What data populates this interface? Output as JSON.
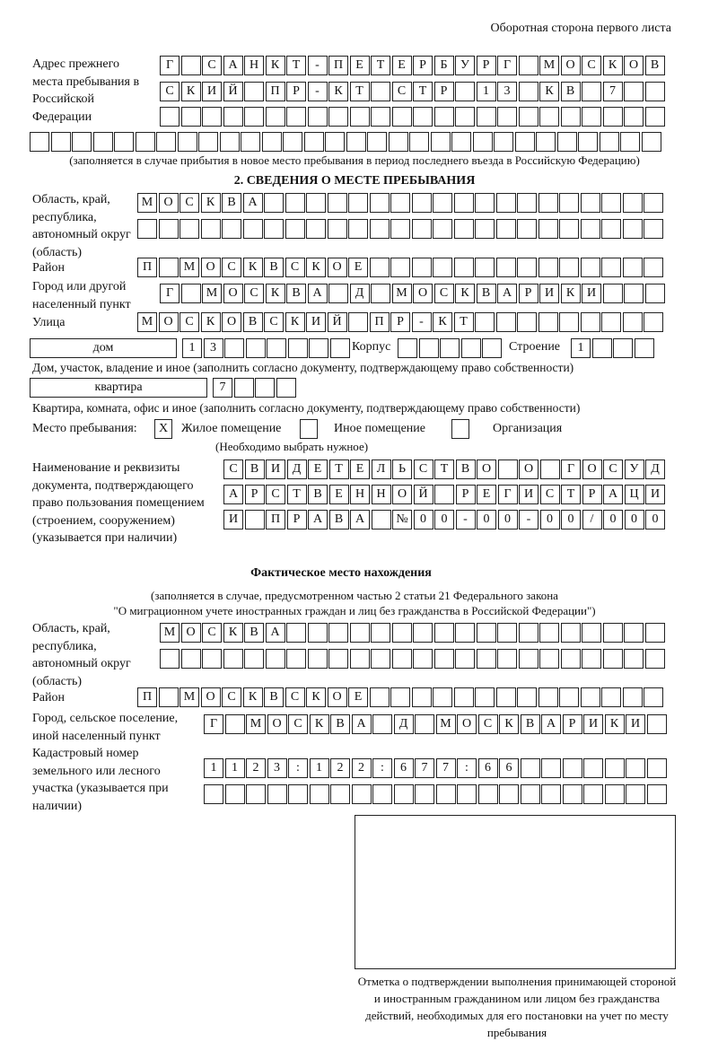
{
  "header": "Оборотная сторона первого листа",
  "prev_address": {
    "label": "Адрес прежнего места пребывания в Российской Федерации",
    "rows": [
      "Г САНКТ-ПЕТЕРБУРГ МОСКОВ",
      "СКИЙ ПР-КТ СТР 13 КВ 7  ",
      "                        ",
      "                              "
    ],
    "note": "(заполняется в случае прибытия в новое место пребывания в период последнего въезда в Российскую Федерацию)"
  },
  "section2": {
    "title": "2. СВЕДЕНИЯ О МЕСТЕ ПРЕБЫВАНИЯ",
    "region_label": "Область, край, республика, автономный округ (область)",
    "region_rows": [
      "МОСКВА                   ",
      "                         "
    ],
    "district_label": "Район",
    "district_row": "П МОСКВСКОЕ              ",
    "city_label": "Город или другой населенный пункт",
    "city_row": "Г МОСКВА Д МОСКВАРИКИ   ",
    "street_label": "Улица",
    "street_row": "МОСКОВСКИЙ ПР-КТ         ",
    "house_type": "дом",
    "house_row": "13      ",
    "korpus_label": "Корпус",
    "korpus_row": "     ",
    "stroenie_label": "Строение",
    "stroenie_row": "1   ",
    "house_note": "Дом, участок, владение и иное (заполнить согласно документу, подтверждающему право собственности)",
    "flat_type": "квартира",
    "flat_row": "7   ",
    "flat_note": "Квартира, комната, офис и иное (заполнить согласно документу, подтверждающему право собственности)",
    "stay_label": "Место пребывания:",
    "stay_options": [
      {
        "label": "Жилое помещение",
        "mark": "Х"
      },
      {
        "label": "Иное помещение",
        "mark": ""
      },
      {
        "label": "Организация",
        "mark": ""
      }
    ],
    "stay_note": "(Необходимо выбрать нужное)",
    "doc_label": "Наименование и реквизиты документа, подтверждающего право пользования помещением (строением, сооружением) (указывается при наличии)",
    "doc_rows": [
      "СВИДЕТЕЛЬСТВО О ГОСУД",
      "АРСТВЕННОЙ РЕГИСТРАЦИ",
      "И ПРАВА №00-00-00/000"
    ]
  },
  "actual": {
    "title": "Фактическое место нахождения",
    "note1": "(заполняется в случае, предусмотренном частью 2 статьи 21 Федерального закона",
    "note2": "\"О миграционном учете иностранных граждан и лиц без гражданства в Российской Федерации\")",
    "region_label": "Область, край, республика, автономный округ (область)",
    "region_rows": [
      "МОСКВА                  ",
      "                        "
    ],
    "district_label": "Район",
    "district_row": "П МОСКВСКОЕ              ",
    "city_label": "Город, сельское поселение, иной населенный пункт",
    "city_row": "Г МОСКВА Д МОСКВАРИКИ ",
    "cadastral_label": "Кадастровый номер земельного или лесного участка (указывается при наличии)",
    "cadastral_rows": [
      "1123:122:677:66       ",
      "                      "
    ]
  },
  "stamp_caption": "Отметка о подтверждении выполнения принимающей стороной и иностранным гражданином или лицом без гражданства действий, необходимых для его постановки на учет по месту пребывания"
}
